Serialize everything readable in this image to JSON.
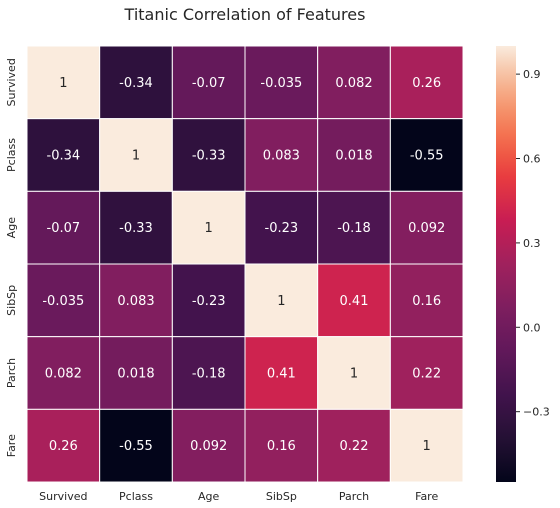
{
  "chart_data": {
    "type": "heatmap",
    "title": "Titanic Correlation of Features",
    "xlabel": "",
    "ylabel": "",
    "x_categories": [
      "Survived",
      "Pclass",
      "Age",
      "SibSp",
      "Parch",
      "Fare"
    ],
    "y_categories": [
      "Survived",
      "Pclass",
      "Age",
      "SibSp",
      "Parch",
      "Fare"
    ],
    "values": [
      [
        1,
        -0.34,
        -0.07,
        -0.035,
        0.082,
        0.26
      ],
      [
        -0.34,
        1,
        -0.33,
        0.083,
        0.018,
        -0.55
      ],
      [
        -0.07,
        -0.33,
        1,
        -0.23,
        -0.18,
        0.092
      ],
      [
        -0.035,
        0.083,
        -0.23,
        1,
        0.41,
        0.16
      ],
      [
        0.082,
        0.018,
        -0.18,
        0.41,
        1,
        0.22
      ],
      [
        0.26,
        -0.55,
        0.092,
        0.16,
        0.22,
        1
      ]
    ],
    "value_labels": [
      [
        "1",
        "-0.34",
        "-0.07",
        "-0.035",
        "0.082",
        "0.26"
      ],
      [
        "-0.34",
        "1",
        "-0.33",
        "0.083",
        "0.018",
        "-0.55"
      ],
      [
        "-0.07",
        "-0.33",
        "1",
        "-0.23",
        "-0.18",
        "0.092"
      ],
      [
        "-0.035",
        "0.083",
        "-0.23",
        "1",
        "0.41",
        "0.16"
      ],
      [
        "0.082",
        "0.018",
        "-0.18",
        "0.41",
        "1",
        "0.22"
      ],
      [
        "0.26",
        "-0.55",
        "0.092",
        "0.16",
        "0.22",
        "1"
      ]
    ],
    "colorscale": {
      "name": "rocket",
      "vmin": -0.55,
      "vmax": 1,
      "ticks": [
        -0.3,
        0,
        0.3,
        0.6,
        0.9
      ],
      "tick_labels": [
        "−0.3",
        "0.0",
        "0.3",
        "0.6",
        "0.9"
      ]
    },
    "cell_border_color": "#ffffff",
    "text_color_dark": "#262626",
    "text_color_light": "#ffffff"
  }
}
